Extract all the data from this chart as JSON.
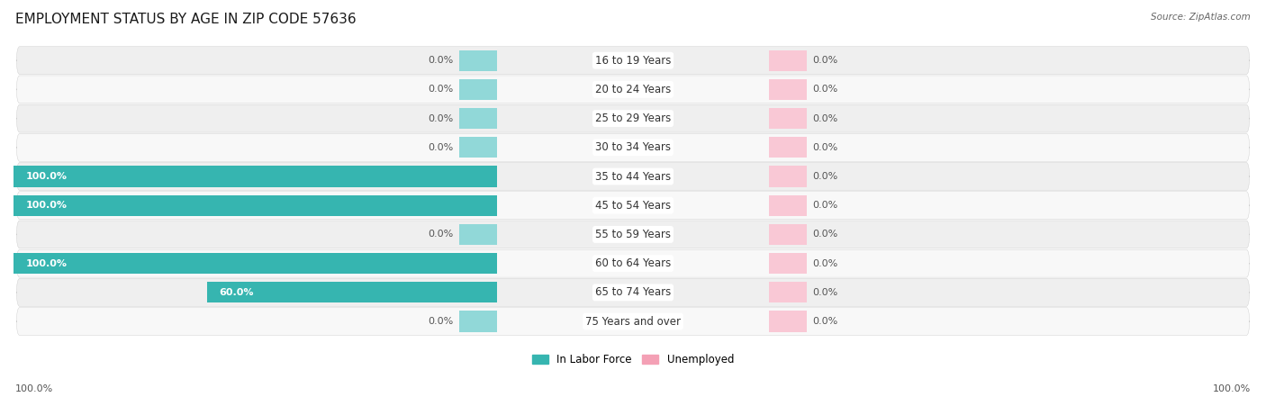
{
  "title": "EMPLOYMENT STATUS BY AGE IN ZIP CODE 57636",
  "source": "Source: ZipAtlas.com",
  "categories": [
    "16 to 19 Years",
    "20 to 24 Years",
    "25 to 29 Years",
    "30 to 34 Years",
    "35 to 44 Years",
    "45 to 54 Years",
    "55 to 59 Years",
    "60 to 64 Years",
    "65 to 74 Years",
    "75 Years and over"
  ],
  "in_labor_force": [
    0.0,
    0.0,
    0.0,
    0.0,
    100.0,
    100.0,
    0.0,
    100.0,
    60.0,
    0.0
  ],
  "unemployed": [
    0.0,
    0.0,
    0.0,
    0.0,
    0.0,
    0.0,
    0.0,
    0.0,
    0.0,
    0.0
  ],
  "labor_force_color": "#36b5b0",
  "unemployed_color": "#f4a0b5",
  "labor_force_stub_color": "#91d8d8",
  "unemployed_stub_color": "#f9c8d5",
  "row_bg_odd": "#efefef",
  "row_bg_even": "#f8f8f8",
  "title_fontsize": 11,
  "label_fontsize": 8.5,
  "value_fontsize": 8,
  "xlim_left": -100,
  "xlim_right": 100,
  "x_left_label": "100.0%",
  "x_right_label": "100.0%",
  "legend_labor": "In Labor Force",
  "legend_unemployed": "Unemployed"
}
